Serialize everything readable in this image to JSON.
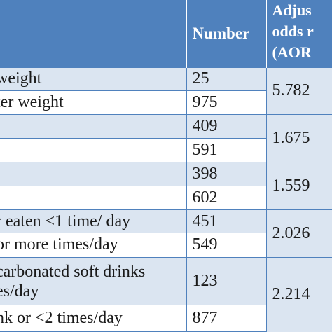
{
  "header": {
    "number_label": "Number",
    "aor_line1": "Adjus",
    "aor_line2": "odds r",
    "aor_line3": "(AOR"
  },
  "groups": [
    {
      "rows": [
        {
          "category": "weight",
          "number": "25"
        },
        {
          "category": "ter weight",
          "number": "975"
        }
      ],
      "aor": "5.782"
    },
    {
      "rows": [
        {
          "category": "",
          "number": "409"
        },
        {
          "category": "",
          "number": "591"
        }
      ],
      "aor": "1.675"
    },
    {
      "rows": [
        {
          "category": "",
          "number": "398"
        },
        {
          "category": "",
          "number": "602"
        }
      ],
      "aor": "1.559"
    },
    {
      "rows": [
        {
          "category": "r eaten <1 time/ day",
          "number": "451"
        },
        {
          "category": "or more times/day",
          "number": "549"
        }
      ],
      "aor": "2.026"
    },
    {
      "rows": [
        {
          "category": "carbonated soft drinks\nes/day",
          "number": "123"
        },
        {
          "category": "nk or <2 times/day",
          "number": "877"
        }
      ],
      "aor": "2.214"
    }
  ]
}
